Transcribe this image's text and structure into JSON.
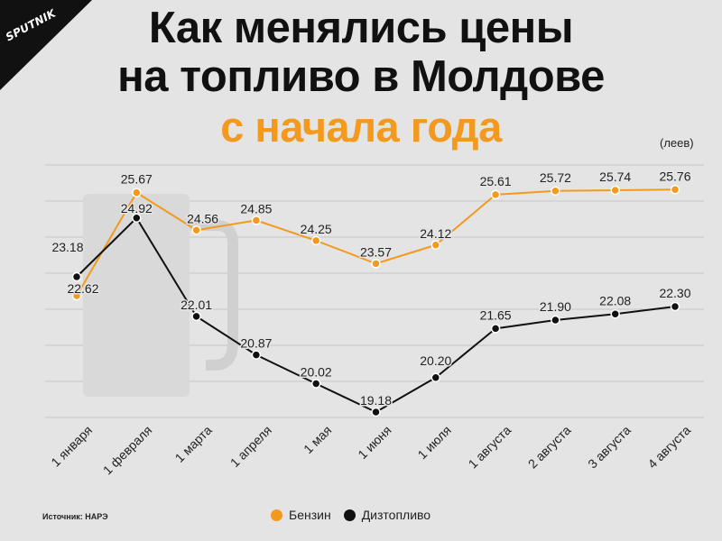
{
  "logo": {
    "text": "SPUTNIK"
  },
  "title": {
    "line1": "Как менялись цены",
    "line2": "на топливо в Молдове",
    "line3": "с начала года"
  },
  "chart_data": {
    "type": "line",
    "unit": "(леев)",
    "categories": [
      "1 января",
      "1 февраля",
      "1 марта",
      "1 апреля",
      "1 мая",
      "1 июня",
      "1 июля",
      "1 августа",
      "2 августа",
      "3 августа",
      "4 августа"
    ],
    "series": [
      {
        "name": "Бензин",
        "color": "#f39a1e",
        "values": [
          22.62,
          25.67,
          24.56,
          24.85,
          24.25,
          23.57,
          24.12,
          25.61,
          25.72,
          25.74,
          25.76
        ]
      },
      {
        "name": "Дизтопливо",
        "color": "#111111",
        "values": [
          23.18,
          24.92,
          22.01,
          20.87,
          20.02,
          19.18,
          20.2,
          21.65,
          21.9,
          22.08,
          22.3
        ]
      }
    ],
    "grid": true
  },
  "source": "Источник: НАРЭ",
  "legend": [
    {
      "label": "Бензин",
      "color": "#f39a1e"
    },
    {
      "label": "Дизтопливо",
      "color": "#111111"
    }
  ]
}
